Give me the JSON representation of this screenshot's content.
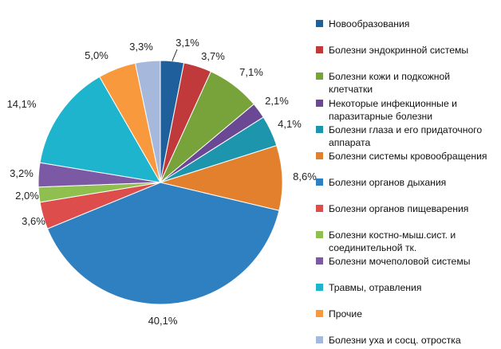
{
  "chart_data": {
    "type": "pie",
    "title": "",
    "start": "top",
    "direction": "clockwise",
    "slices": [
      {
        "name": "Новообразования",
        "value": 3.1,
        "label": "3,1%",
        "color": "#1f5f9c"
      },
      {
        "name": "Болезни эндокринной системы",
        "value": 3.7,
        "label": "3,7%",
        "color": "#c0393b"
      },
      {
        "name": "Болезни кожи и подкожной клетчатки",
        "value": 7.1,
        "label": "7,1%",
        "color": "#77a33a"
      },
      {
        "name": "Некоторые инфекционные и паразитарные болезни",
        "value": 2.1,
        "label": "2,1%",
        "color": "#6b4894"
      },
      {
        "name": "Болезни глаза и его придаточного аппарата",
        "value": 4.1,
        "label": "4,1%",
        "color": "#1d96ad"
      },
      {
        "name": "Болезни системы кровообращения",
        "value": 8.6,
        "label": "8,6%",
        "color": "#e2802e"
      },
      {
        "name": "Болезни органов дыхания",
        "value": 40.1,
        "label": "40,1%",
        "color": "#2f80c1"
      },
      {
        "name": "Болезни органов пищеварения",
        "value": 3.6,
        "label": "3,6%",
        "color": "#dc4d4c"
      },
      {
        "name": "Болезни костно-мыш.сист. и соединительной тк.",
        "value": 2.0,
        "label": "2,0%",
        "color": "#8fc04f"
      },
      {
        "name": "Болезни мочеполовой системы",
        "value": 3.2,
        "label": "3,2%",
        "color": "#7c59a4"
      },
      {
        "name": "Травмы, отравления",
        "value": 14.1,
        "label": "14,1%",
        "color": "#1fb4cd"
      },
      {
        "name": "Прочие",
        "value": 5.0,
        "label": "5,0%",
        "color": "#f8993d"
      },
      {
        "name": "Болезни уха и сосц. отростка",
        "value": 3.3,
        "label": "3,3%",
        "color": "#a6b9dc"
      }
    ],
    "legend": {
      "position": "right"
    }
  }
}
